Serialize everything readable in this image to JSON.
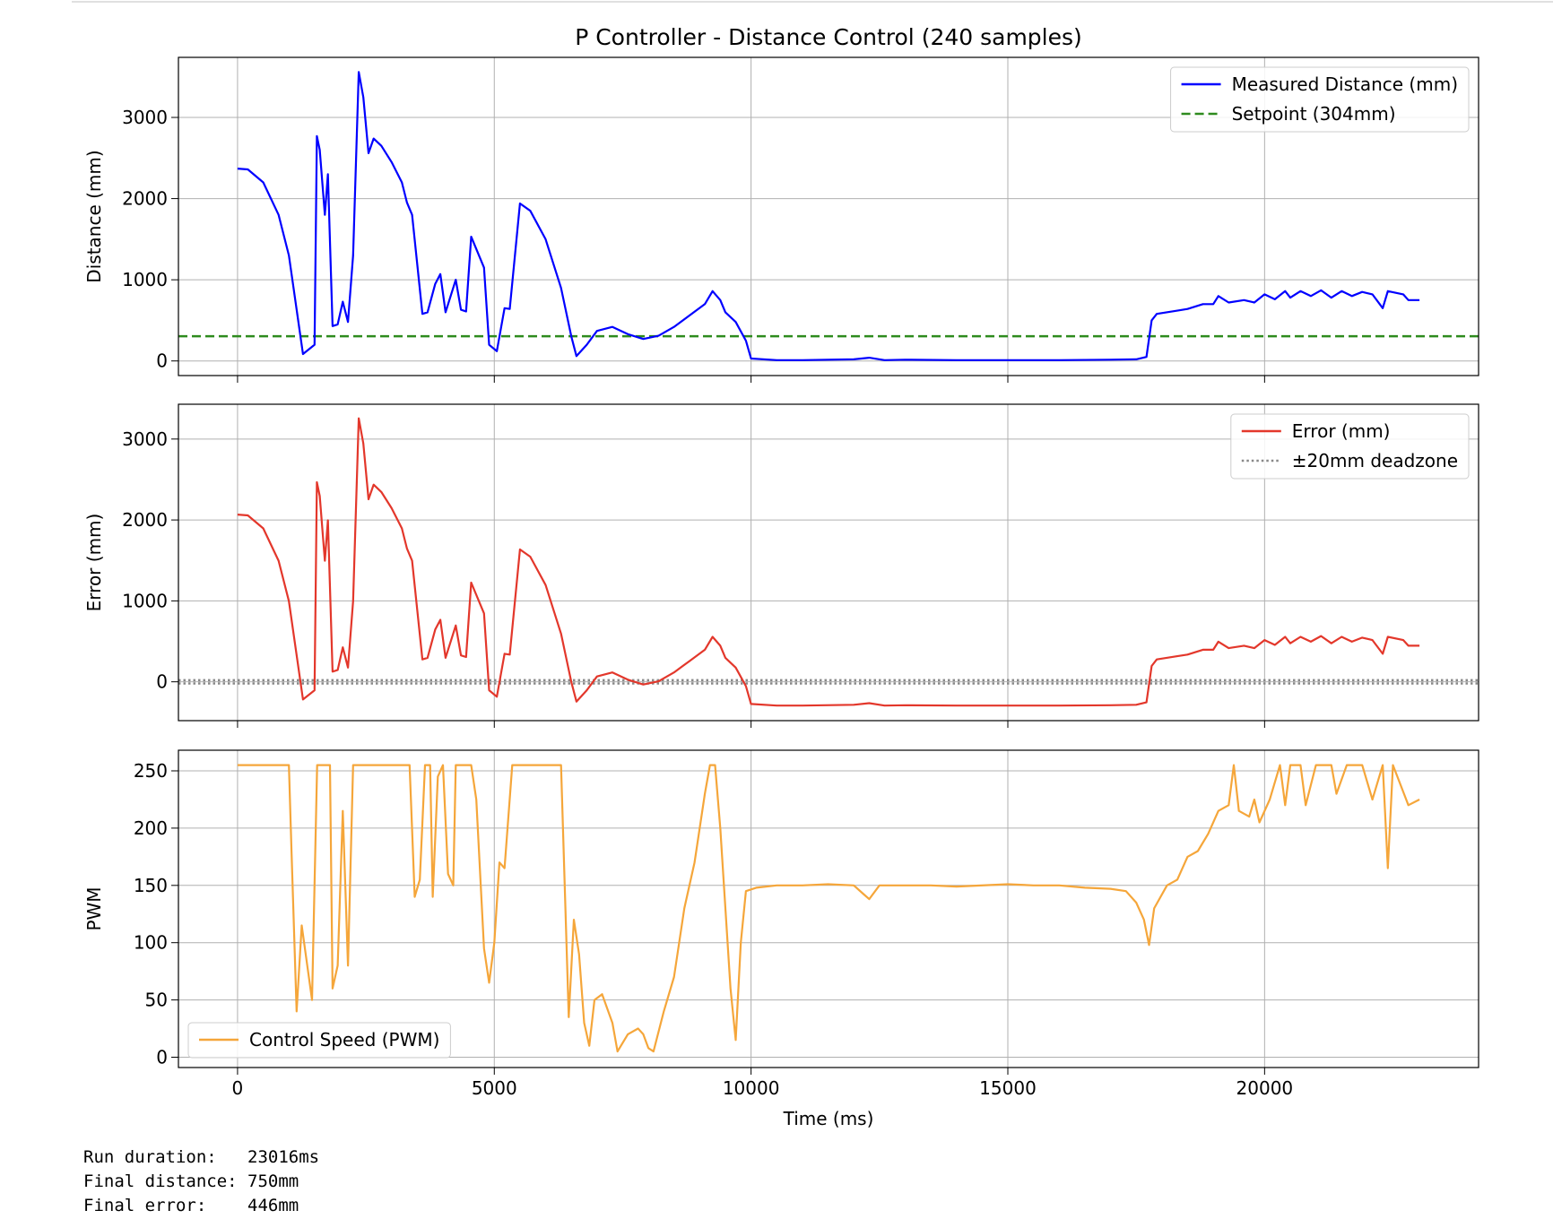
{
  "chart_data": [
    {
      "type": "line",
      "title": "P Controller - Distance Control (240 samples)",
      "ylabel": "Distance (mm)",
      "x": [
        0,
        200,
        500,
        800,
        1000,
        1275,
        1500,
        1545,
        1600,
        1700,
        1760,
        1850,
        1950,
        2050,
        2150,
        2250,
        2360,
        2450,
        2550,
        2650,
        2800,
        3000,
        3200,
        3300,
        3400,
        3600,
        3700,
        3850,
        3950,
        4050,
        4250,
        4350,
        4450,
        4550,
        4800,
        4900,
        5050,
        5200,
        5300,
        5500,
        5700,
        6000,
        6300,
        6500,
        6600,
        6800,
        7000,
        7300,
        7600,
        7900,
        8200,
        8500,
        8800,
        9100,
        9250,
        9400,
        9500,
        9700,
        9900,
        10000,
        10500,
        11000,
        12000,
        12300,
        12600,
        13000,
        14000,
        15000,
        16000,
        17000,
        17500,
        17700,
        17800,
        17900,
        18300,
        18500,
        18800,
        19000,
        19100,
        19300,
        19600,
        19800,
        20000,
        20200,
        20400,
        20500,
        20700,
        20900,
        21100,
        21300,
        21500,
        21700,
        21900,
        22100,
        22300,
        22400,
        22700,
        22800,
        23016
      ],
      "series": [
        {
          "name": "Measured Distance (mm)",
          "color": "#0000ff",
          "values": [
            2370,
            2360,
            2200,
            1800,
            1300,
            85,
            200,
            2770,
            2600,
            1800,
            2300,
            430,
            450,
            730,
            480,
            1300,
            3560,
            3250,
            2560,
            2740,
            2650,
            2450,
            2200,
            1950,
            1800,
            580,
            600,
            950,
            1070,
            600,
            1000,
            630,
            610,
            1530,
            1150,
            200,
            120,
            650,
            640,
            1940,
            1850,
            1500,
            900,
            300,
            60,
            200,
            370,
            420,
            330,
            270,
            310,
            420,
            560,
            700,
            860,
            750,
            600,
            480,
            250,
            30,
            10,
            10,
            20,
            40,
            10,
            15,
            10,
            10,
            10,
            15,
            20,
            50,
            500,
            580,
            620,
            640,
            700,
            700,
            800,
            720,
            750,
            720,
            820,
            760,
            860,
            780,
            860,
            800,
            870,
            780,
            860,
            800,
            850,
            820,
            650,
            860,
            820,
            750,
            750
          ]
        }
      ],
      "reference_lines": [
        {
          "name": "Setpoint (304mm)",
          "values": [
            304
          ],
          "color": "#2e8b1e",
          "style": "dashed"
        }
      ],
      "xlim": [
        -1151,
        24167
      ],
      "ylim": [
        -180,
        3740
      ],
      "xticks": [
        0,
        5000,
        10000,
        15000,
        20000
      ],
      "yticks": [
        0,
        1000,
        2000,
        3000
      ],
      "grid": true,
      "legend": "upper right"
    },
    {
      "type": "line",
      "ylabel": "Error (mm)",
      "x": [
        0,
        200,
        500,
        800,
        1000,
        1275,
        1500,
        1545,
        1600,
        1700,
        1760,
        1850,
        1950,
        2050,
        2150,
        2250,
        2360,
        2450,
        2550,
        2650,
        2800,
        3000,
        3200,
        3300,
        3400,
        3600,
        3700,
        3850,
        3950,
        4050,
        4250,
        4350,
        4450,
        4550,
        4800,
        4900,
        5050,
        5200,
        5300,
        5500,
        5700,
        6000,
        6300,
        6500,
        6600,
        6800,
        7000,
        7300,
        7600,
        7900,
        8200,
        8500,
        8800,
        9100,
        9250,
        9400,
        9500,
        9700,
        9900,
        10000,
        10500,
        11000,
        12000,
        12300,
        12600,
        13000,
        14000,
        15000,
        16000,
        17000,
        17500,
        17700,
        17800,
        17900,
        18300,
        18500,
        18800,
        19000,
        19100,
        19300,
        19600,
        19800,
        20000,
        20200,
        20400,
        20500,
        20700,
        20900,
        21100,
        21300,
        21500,
        21700,
        21900,
        22100,
        22300,
        22400,
        22700,
        22800,
        23016
      ],
      "series": [
        {
          "name": "Error (mm)",
          "color": "#e3372b",
          "values": [
            2066,
            2056,
            1896,
            1496,
            996,
            -219,
            -104,
            2466,
            2296,
            1496,
            1996,
            126,
            146,
            426,
            176,
            996,
            3256,
            2946,
            2256,
            2436,
            2346,
            2146,
            1896,
            1646,
            1496,
            276,
            296,
            646,
            766,
            296,
            696,
            326,
            306,
            1226,
            846,
            -104,
            -184,
            346,
            336,
            1636,
            1546,
            1196,
            596,
            -4,
            -244,
            -104,
            66,
            116,
            26,
            -34,
            6,
            116,
            256,
            396,
            556,
            446,
            296,
            176,
            -54,
            -274,
            -294,
            -294,
            -284,
            -264,
            -294,
            -289,
            -294,
            -294,
            -294,
            -289,
            -284,
            -254,
            196,
            276,
            316,
            336,
            396,
            396,
            496,
            416,
            446,
            416,
            516,
            456,
            556,
            476,
            556,
            496,
            566,
            476,
            556,
            496,
            546,
            516,
            346,
            556,
            516,
            446,
            446
          ]
        }
      ],
      "reference_lines": [
        {
          "name": "±20mm deadzone",
          "values": [
            -20,
            20
          ],
          "color": "#888888",
          "style": "dotted"
        }
      ],
      "xlim": [
        -1151,
        24167
      ],
      "ylim": [
        -480,
        3430
      ],
      "xticks": [
        0,
        5000,
        10000,
        15000,
        20000
      ],
      "yticks": [
        0,
        1000,
        2000,
        3000
      ],
      "grid": true,
      "legend": "upper right"
    },
    {
      "type": "line",
      "ylabel": "PWM",
      "xlabel": "Time (ms)",
      "x": [
        0,
        1000,
        1050,
        1150,
        1250,
        1450,
        1550,
        1800,
        1850,
        1950,
        2050,
        2150,
        2250,
        3350,
        3450,
        3550,
        3650,
        3750,
        3800,
        3900,
        4000,
        4100,
        4200,
        4250,
        4550,
        4650,
        4800,
        4900,
        5000,
        5100,
        5200,
        5350,
        6300,
        6450,
        6550,
        6650,
        6750,
        6850,
        6950,
        7100,
        7300,
        7400,
        7600,
        7800,
        7900,
        8000,
        8100,
        8300,
        8500,
        8700,
        8900,
        9100,
        9200,
        9300,
        9400,
        9600,
        9700,
        9800,
        9900,
        10100,
        10500,
        11000,
        11500,
        12000,
        12200,
        12300,
        12500,
        13000,
        13500,
        14000,
        15000,
        15500,
        16000,
        16500,
        17000,
        17300,
        17500,
        17650,
        17750,
        17850,
        18100,
        18300,
        18500,
        18700,
        18900,
        19100,
        19300,
        19400,
        19500,
        19700,
        19800,
        19900,
        20100,
        20300,
        20400,
        20500,
        20700,
        20800,
        21000,
        21300,
        21400,
        21600,
        21900,
        22100,
        22300,
        22400,
        22500,
        22800,
        23016
      ],
      "series": [
        {
          "name": "Control Speed (PWM)",
          "color": "#f5a63a",
          "values": [
            255,
            255,
            180,
            40,
            115,
            50,
            255,
            255,
            60,
            80,
            215,
            80,
            255,
            255,
            140,
            155,
            255,
            255,
            140,
            245,
            255,
            160,
            150,
            255,
            255,
            225,
            95,
            65,
            100,
            170,
            165,
            255,
            255,
            35,
            120,
            90,
            30,
            10,
            50,
            55,
            30,
            5,
            20,
            25,
            20,
            8,
            5,
            40,
            70,
            130,
            170,
            230,
            255,
            255,
            200,
            60,
            15,
            100,
            145,
            148,
            150,
            150,
            151,
            150,
            142,
            138,
            150,
            150,
            150,
            149,
            151,
            150,
            150,
            148,
            147,
            145,
            135,
            120,
            98,
            130,
            150,
            155,
            175,
            180,
            195,
            215,
            220,
            255,
            215,
            210,
            225,
            205,
            225,
            255,
            220,
            255,
            255,
            220,
            255,
            255,
            230,
            255,
            255,
            225,
            255,
            165,
            255,
            220,
            225
          ]
        }
      ],
      "xlim": [
        -1151,
        24167
      ],
      "ylim": [
        -9,
        268
      ],
      "xticks": [
        0,
        5000,
        10000,
        15000,
        20000
      ],
      "yticks": [
        0,
        50,
        100,
        150,
        200,
        250
      ],
      "grid": true,
      "legend": "lower left"
    }
  ],
  "output": {
    "lines": [
      "Run duration:   23016ms",
      "Final distance: 750mm",
      "Final error:    446mm"
    ]
  }
}
